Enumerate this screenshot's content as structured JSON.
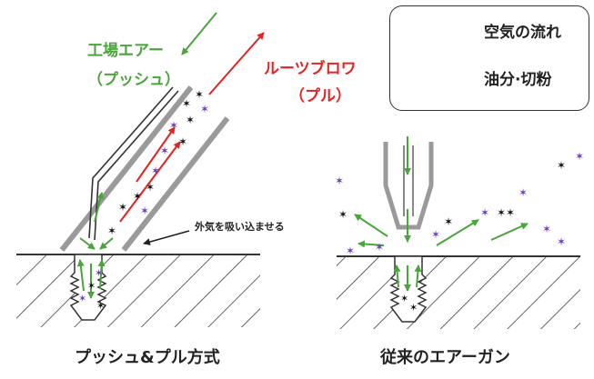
{
  "labels": {
    "push_air": "工場エアー",
    "push_sub": "（プッシュ）",
    "roots_blower": "ルーツブロワ",
    "pull_sub": "（プル）",
    "outside_air": "外気を吸い込ませる",
    "caption_left": "プッシュ&プル方式",
    "caption_right": "従来のエアーガン"
  },
  "legend": {
    "airflow": "空気の流れ",
    "chips": "油分·切粉"
  },
  "colors": {
    "green": "#4aa53c",
    "red": "#e32424",
    "purple": "#6a3fb5",
    "black": "#111111",
    "hatch": "#333333"
  }
}
